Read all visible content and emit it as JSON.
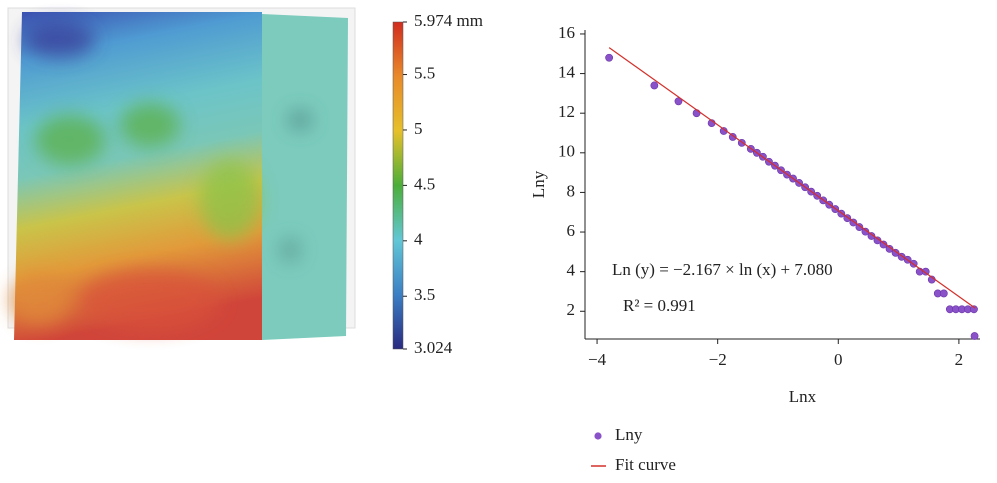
{
  "chart_data": [
    {
      "type": "colorbar",
      "ylim": [
        3.024,
        5.974
      ],
      "yticks": [
        {
          "value": 5.974,
          "label": "5.974 mm"
        },
        5.5,
        5,
        4.5,
        4,
        3.5,
        3.024
      ],
      "colors": [
        "#2a2a80",
        "#3b7fc4",
        "#62c7d6",
        "#4cae3a",
        "#e6c02a",
        "#e88a2a",
        "#d12c1f"
      ]
    },
    {
      "type": "scatter",
      "xlabel": "Lnx",
      "ylabel": "Lny",
      "xlim": [
        -4.2,
        2.35
      ],
      "ylim": [
        0.6,
        16.2
      ],
      "xticks": [
        {
          "value": -4,
          "label": "−4"
        },
        {
          "value": -2,
          "label": "−2"
        },
        0,
        2
      ],
      "yticks": [
        2,
        4,
        6,
        8,
        10,
        12,
        14,
        16
      ],
      "annotations": [
        "Ln (y) = −2.167 × ln (x) + 7.080",
        "R² = 0.991"
      ],
      "series": [
        {
          "name": "Lny",
          "color": "#8a52c9",
          "mode": "markers",
          "x": [
            -3.8,
            -3.05,
            -2.65,
            -2.35,
            -2.1,
            -1.9,
            -1.75,
            -1.6,
            -1.45,
            -1.35,
            -1.25,
            -1.15,
            -1.05,
            -0.95,
            -0.85,
            -0.75,
            -0.65,
            -0.55,
            -0.45,
            -0.35,
            -0.25,
            -0.15,
            -0.05,
            0.05,
            0.15,
            0.25,
            0.35,
            0.45,
            0.55,
            0.65,
            0.75,
            0.85,
            0.95,
            1.05,
            1.15,
            1.25,
            1.35,
            1.45,
            1.55,
            1.65,
            1.75,
            1.85,
            1.95,
            2.05,
            2.15,
            2.25,
            2.26
          ],
          "values": [
            14.8,
            13.4,
            12.6,
            12.0,
            11.5,
            11.1,
            10.8,
            10.5,
            10.2,
            10.0,
            9.8,
            9.55,
            9.35,
            9.12,
            8.9,
            8.7,
            8.48,
            8.26,
            8.04,
            7.83,
            7.6,
            7.38,
            7.16,
            6.93,
            6.7,
            6.48,
            6.25,
            6.02,
            5.8,
            5.58,
            5.37,
            5.15,
            4.95,
            4.75,
            4.6,
            4.4,
            4.0,
            4.0,
            3.6,
            2.9,
            2.9,
            2.1,
            2.1,
            2.1,
            2.1,
            2.1,
            0.75
          ]
        },
        {
          "name": "Fit curve",
          "color": "#d3302a",
          "mode": "line",
          "x": [
            -3.8,
            2.27
          ],
          "values": [
            15.31,
            2.16
          ]
        }
      ]
    }
  ]
}
